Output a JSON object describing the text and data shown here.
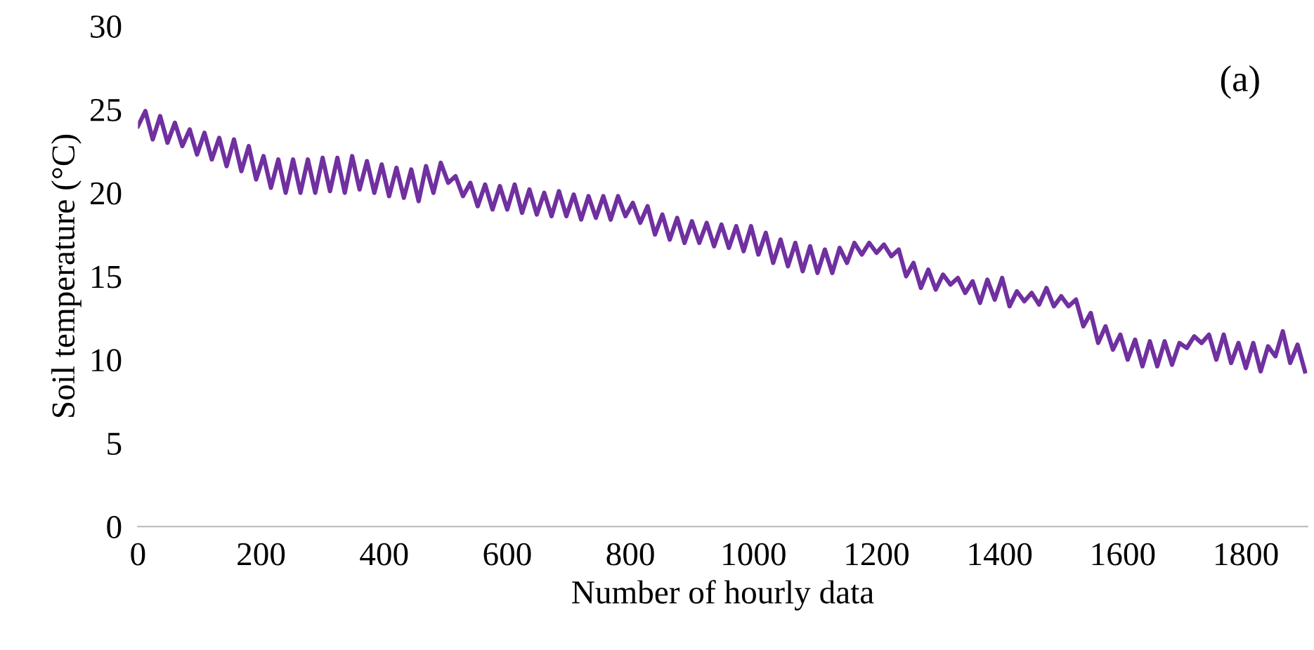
{
  "chart_data": {
    "type": "line",
    "xlabel": "Number of hourly data",
    "ylabel": "Soil temperature (°C)",
    "annotations": [
      "(a)"
    ],
    "xlim": [
      0,
      1900
    ],
    "ylim": [
      0,
      30
    ],
    "xticks": [
      0,
      200,
      400,
      600,
      800,
      1000,
      1200,
      1400,
      1600,
      1800
    ],
    "yticks": [
      0,
      5,
      10,
      15,
      20,
      25,
      30
    ],
    "grid": false,
    "legend": false,
    "marker": "none",
    "line_style": "solid",
    "x": [
      0,
      12,
      24,
      36,
      48,
      60,
      72,
      84,
      96,
      108,
      120,
      132,
      144,
      156,
      168,
      180,
      192,
      204,
      216,
      228,
      240,
      252,
      264,
      276,
      288,
      300,
      312,
      324,
      336,
      348,
      360,
      372,
      384,
      396,
      408,
      420,
      432,
      444,
      456,
      468,
      480,
      492,
      504,
      516,
      528,
      540,
      552,
      564,
      576,
      588,
      600,
      612,
      624,
      636,
      648,
      660,
      672,
      684,
      696,
      708,
      720,
      732,
      744,
      756,
      768,
      780,
      792,
      804,
      816,
      828,
      840,
      852,
      864,
      876,
      888,
      900,
      912,
      924,
      936,
      948,
      960,
      972,
      984,
      996,
      1008,
      1020,
      1032,
      1044,
      1056,
      1068,
      1080,
      1092,
      1104,
      1116,
      1128,
      1140,
      1152,
      1164,
      1176,
      1188,
      1200,
      1212,
      1224,
      1236,
      1248,
      1260,
      1272,
      1284,
      1296,
      1308,
      1320,
      1332,
      1344,
      1356,
      1368,
      1380,
      1392,
      1404,
      1416,
      1428,
      1440,
      1452,
      1464,
      1476,
      1488,
      1500,
      1512,
      1524,
      1536,
      1548,
      1560,
      1572,
      1584,
      1596,
      1608,
      1620,
      1632,
      1644,
      1656,
      1668,
      1680,
      1692,
      1704,
      1716,
      1728,
      1740,
      1752,
      1764,
      1776,
      1788,
      1800,
      1812,
      1824,
      1836,
      1848,
      1860,
      1872,
      1884,
      1896
    ],
    "series": [
      {
        "color": "#7030a0",
        "values": [
          24.0,
          24.9,
          23.2,
          24.6,
          23.0,
          24.2,
          22.8,
          23.8,
          22.3,
          23.6,
          22.0,
          23.3,
          21.6,
          23.2,
          21.3,
          22.8,
          20.8,
          22.2,
          20.3,
          22.0,
          20.0,
          22.0,
          20.0,
          22.0,
          20.0,
          22.1,
          20.1,
          22.1,
          20.0,
          22.2,
          20.2,
          21.9,
          20.0,
          21.7,
          19.8,
          21.5,
          19.7,
          21.4,
          19.5,
          21.6,
          20.0,
          21.8,
          20.6,
          21.0,
          19.8,
          20.6,
          19.2,
          20.5,
          19.0,
          20.4,
          19.0,
          20.5,
          18.8,
          20.2,
          18.7,
          20.0,
          18.6,
          20.1,
          18.6,
          19.9,
          18.4,
          19.8,
          18.5,
          19.8,
          18.4,
          19.8,
          18.6,
          19.4,
          18.2,
          19.2,
          17.5,
          18.7,
          17.2,
          18.5,
          17.0,
          18.3,
          17.0,
          18.2,
          16.8,
          18.1,
          16.7,
          18.0,
          16.5,
          18.0,
          16.3,
          17.6,
          15.8,
          17.2,
          15.6,
          17.0,
          15.3,
          16.8,
          15.2,
          16.6,
          15.2,
          16.7,
          15.8,
          17.0,
          16.3,
          17.0,
          16.4,
          16.9,
          16.2,
          16.6,
          15.0,
          15.8,
          14.3,
          15.4,
          14.2,
          15.1,
          14.5,
          14.9,
          14.0,
          14.7,
          13.4,
          14.8,
          13.6,
          14.9,
          13.2,
          14.1,
          13.5,
          14.0,
          13.3,
          14.3,
          13.2,
          13.8,
          13.2,
          13.6,
          12.0,
          12.8,
          11.0,
          12.0,
          10.6,
          11.5,
          10.0,
          11.2,
          9.6,
          11.1,
          9.6,
          11.1,
          9.7,
          11.0,
          10.7,
          11.4,
          11.0,
          11.5,
          10.0,
          11.5,
          9.8,
          11.0,
          9.5,
          11.0,
          9.3,
          10.8,
          10.2,
          11.7,
          9.8,
          10.9,
          9.3
        ]
      }
    ]
  }
}
